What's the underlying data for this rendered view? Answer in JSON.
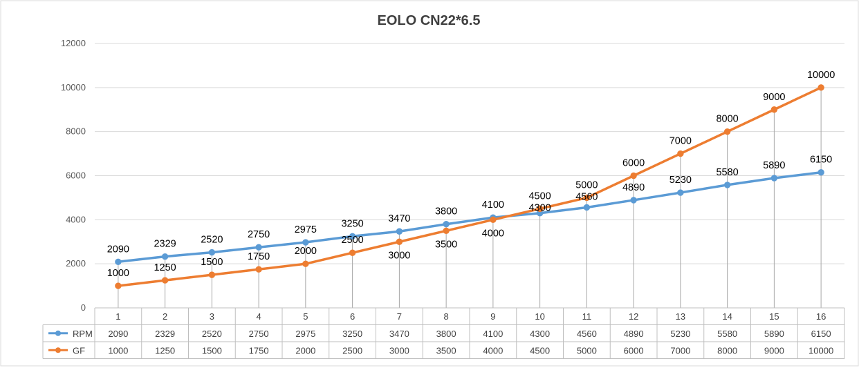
{
  "chart_data": {
    "type": "line",
    "title": "EOLO CN22*6.5",
    "xlabel": "",
    "ylabel": "",
    "categories": [
      "1",
      "2",
      "3",
      "4",
      "5",
      "6",
      "7",
      "8",
      "9",
      "10",
      "11",
      "12",
      "13",
      "14",
      "15",
      "16"
    ],
    "ylim": [
      0,
      12000
    ],
    "yticks": [
      0,
      2000,
      4000,
      6000,
      8000,
      10000,
      12000
    ],
    "grid": true,
    "drop_lines": true,
    "data_table": true,
    "series": [
      {
        "name": "RPM",
        "color": "#5b9bd5",
        "values": [
          2090,
          2329,
          2520,
          2750,
          2975,
          3250,
          3470,
          3800,
          4100,
          4300,
          4560,
          4890,
          5230,
          5580,
          5890,
          6150
        ]
      },
      {
        "name": "GF",
        "color": "#ed7d31",
        "values": [
          1000,
          1250,
          1500,
          1750,
          2000,
          2500,
          3000,
          3500,
          4000,
          4500,
          5000,
          6000,
          7000,
          8000,
          9000,
          10000
        ]
      }
    ]
  }
}
